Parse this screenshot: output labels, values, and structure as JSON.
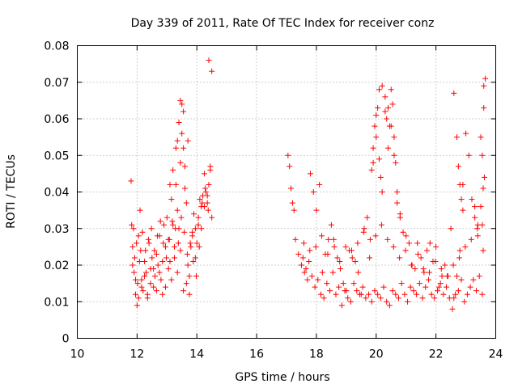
{
  "chart_data": {
    "type": "scatter",
    "title": "Day 339 of 2011, Rate Of TEC Index for receiver conz",
    "xlabel": "GPS time / hours",
    "ylabel": "ROTI / TECUs",
    "xlim": [
      10,
      24
    ],
    "ylim": [
      0,
      0.08
    ],
    "xticks": [
      10,
      12,
      14,
      16,
      18,
      20,
      22,
      24
    ],
    "xtick_labels": [
      "10",
      "12",
      "14",
      "16",
      "18",
      "20",
      "22",
      "24"
    ],
    "yticks": [
      0,
      0.01,
      0.02,
      0.03,
      0.04,
      0.05,
      0.06,
      0.07,
      0.08
    ],
    "ytick_labels": [
      "0",
      "0.01",
      "0.02",
      "0.03",
      "0.04",
      "0.05",
      "0.06",
      "0.07",
      "0.08"
    ],
    "grid": true,
    "marker": "+",
    "color": "#ff0000",
    "series": [
      {
        "name": "ROTI",
        "x": [
          11.8,
          11.82,
          11.85,
          11.9,
          11.92,
          11.95,
          12.0,
          12.02,
          12.05,
          12.1,
          12.12,
          12.15,
          12.2,
          12.25,
          12.3,
          12.35,
          12.4,
          12.45,
          12.5,
          12.55,
          12.6,
          12.65,
          12.7,
          12.75,
          12.8,
          12.85,
          12.9,
          12.95,
          13.0,
          13.05,
          13.1,
          13.15,
          13.2,
          13.25,
          13.3,
          13.35,
          13.4,
          13.45,
          13.5,
          13.55,
          13.6,
          13.65,
          13.7,
          13.75,
          13.8,
          13.85,
          13.9,
          13.95,
          14.0,
          14.05,
          14.1,
          14.15,
          14.2,
          14.25,
          14.3,
          14.35,
          14.4,
          14.45,
          14.5,
          11.85,
          11.95,
          12.05,
          12.15,
          12.25,
          12.35,
          12.45,
          12.55,
          12.65,
          12.75,
          12.85,
          12.95,
          13.05,
          13.15,
          13.25,
          13.35,
          13.45,
          13.55,
          13.65,
          13.75,
          13.85,
          13.95,
          14.05,
          14.15,
          14.25,
          14.35,
          11.88,
          11.98,
          12.08,
          12.18,
          12.28,
          12.38,
          12.48,
          12.58,
          12.68,
          12.78,
          12.88,
          12.98,
          13.08,
          13.18,
          13.28,
          13.38,
          13.48,
          13.58,
          13.68,
          13.78,
          13.88,
          13.98,
          14.08,
          14.18,
          14.28,
          14.38,
          13.1,
          13.2,
          13.3,
          13.35,
          13.4,
          13.45,
          13.5,
          13.55,
          13.6,
          13.7,
          14.4,
          14.5,
          14.45,
          17.05,
          17.1,
          17.15,
          17.2,
          17.25,
          17.3,
          17.4,
          17.5,
          17.6,
          17.7,
          17.8,
          17.9,
          18.0,
          18.1,
          18.2,
          18.3,
          18.4,
          18.5,
          18.6,
          18.7,
          18.8,
          18.9,
          19.0,
          19.1,
          19.2,
          19.3,
          19.4,
          19.5,
          19.6,
          19.7,
          19.8,
          19.9,
          20.0,
          20.1,
          20.2,
          20.3,
          20.4,
          20.5,
          20.6,
          20.7,
          20.8,
          20.9,
          21.0,
          21.1,
          21.2,
          21.3,
          21.4,
          21.5,
          21.6,
          21.7,
          21.8,
          21.9,
          22.0,
          22.1,
          22.2,
          22.3,
          22.4,
          22.5,
          22.6,
          22.7,
          22.8,
          22.9,
          23.0,
          23.1,
          23.2,
          23.3,
          23.4,
          23.5,
          23.6,
          23.65,
          17.55,
          17.65,
          17.75,
          17.85,
          17.95,
          18.05,
          18.15,
          18.25,
          18.35,
          18.45,
          18.55,
          18.65,
          18.75,
          18.85,
          18.95,
          19.05,
          19.15,
          19.25,
          19.35,
          19.45,
          19.55,
          19.65,
          19.75,
          19.85,
          19.95,
          20.05,
          20.15,
          20.25,
          20.35,
          20.45,
          20.55,
          20.65,
          20.75,
          20.85,
          20.95,
          21.05,
          21.15,
          21.25,
          21.35,
          21.45,
          21.55,
          21.65,
          21.75,
          21.85,
          21.95,
          22.05,
          22.15,
          22.25,
          22.35,
          22.45,
          22.55,
          22.65,
          22.75,
          22.85,
          22.95,
          23.05,
          23.15,
          23.25,
          23.35,
          23.45,
          23.55,
          17.58,
          17.78,
          17.98,
          18.18,
          18.38,
          18.58,
          18.78,
          18.98,
          19.18,
          19.38,
          19.58,
          19.78,
          19.98,
          20.18,
          20.38,
          20.58,
          20.78,
          20.98,
          21.18,
          21.38,
          21.58,
          21.78,
          21.98,
          22.18,
          22.38,
          22.58,
          22.78,
          22.98,
          23.18,
          23.38,
          23.58,
          19.85,
          19.9,
          19.95,
          20.0,
          20.05,
          20.1,
          20.15,
          20.2,
          20.3,
          20.35,
          20.4,
          20.45,
          20.5,
          20.55,
          20.6,
          20.65,
          20.7,
          20.8,
          22.6,
          22.7,
          22.75,
          22.8,
          22.85,
          22.9,
          23.3,
          23.4,
          23.5,
          23.55,
          23.6,
          23.62,
          23.58,
          23.55
        ],
        "y": [
          0.043,
          0.031,
          0.025,
          0.018,
          0.022,
          0.012,
          0.009,
          0.015,
          0.028,
          0.035,
          0.024,
          0.016,
          0.013,
          0.021,
          0.018,
          0.011,
          0.026,
          0.019,
          0.022,
          0.014,
          0.017,
          0.023,
          0.02,
          0.028,
          0.016,
          0.012,
          0.031,
          0.025,
          0.033,
          0.027,
          0.021,
          0.038,
          0.031,
          0.025,
          0.042,
          0.035,
          0.03,
          0.048,
          0.056,
          0.062,
          0.041,
          0.037,
          0.02,
          0.017,
          0.025,
          0.029,
          0.034,
          0.022,
          0.026,
          0.031,
          0.038,
          0.036,
          0.039,
          0.045,
          0.04,
          0.037,
          0.042,
          0.046,
          0.033,
          0.02,
          0.016,
          0.011,
          0.014,
          0.017,
          0.012,
          0.015,
          0.019,
          0.013,
          0.018,
          0.021,
          0.014,
          0.019,
          0.016,
          0.022,
          0.018,
          0.024,
          0.013,
          0.015,
          0.012,
          0.028,
          0.03,
          0.033,
          0.03,
          0.036,
          0.039,
          0.03,
          0.026,
          0.021,
          0.029,
          0.024,
          0.027,
          0.03,
          0.024,
          0.028,
          0.032,
          0.026,
          0.022,
          0.027,
          0.032,
          0.03,
          0.026,
          0.033,
          0.029,
          0.023,
          0.026,
          0.021,
          0.017,
          0.025,
          0.037,
          0.041,
          0.035,
          0.042,
          0.046,
          0.052,
          0.054,
          0.059,
          0.065,
          0.064,
          0.052,
          0.047,
          0.054,
          0.076,
          0.073,
          0.047,
          0.05,
          0.047,
          0.041,
          0.037,
          0.035,
          0.027,
          0.023,
          0.02,
          0.018,
          0.016,
          0.045,
          0.04,
          0.035,
          0.042,
          0.018,
          0.023,
          0.027,
          0.031,
          0.025,
          0.022,
          0.019,
          0.015,
          0.013,
          0.024,
          0.022,
          0.021,
          0.018,
          0.012,
          0.03,
          0.033,
          0.027,
          0.048,
          0.055,
          0.068,
          0.069,
          0.062,
          0.052,
          0.058,
          0.05,
          0.04,
          0.034,
          0.029,
          0.028,
          0.026,
          0.02,
          0.019,
          0.023,
          0.022,
          0.018,
          0.024,
          0.026,
          0.021,
          0.025,
          0.014,
          0.017,
          0.02,
          0.017,
          0.03,
          0.011,
          0.017,
          0.024,
          0.042,
          0.056,
          0.05,
          0.038,
          0.033,
          0.028,
          0.036,
          0.069,
          0.071,
          0.022,
          0.019,
          0.021,
          0.017,
          0.014,
          0.016,
          0.012,
          0.011,
          0.015,
          0.013,
          0.018,
          0.012,
          0.014,
          0.009,
          0.013,
          0.011,
          0.01,
          0.015,
          0.013,
          0.012,
          0.014,
          0.011,
          0.012,
          0.01,
          0.013,
          0.012,
          0.011,
          0.014,
          0.01,
          0.009,
          0.013,
          0.012,
          0.011,
          0.015,
          0.012,
          0.01,
          0.014,
          0.013,
          0.012,
          0.015,
          0.011,
          0.014,
          0.016,
          0.012,
          0.011,
          0.013,
          0.015,
          0.012,
          0.014,
          0.011,
          0.008,
          0.012,
          0.013,
          0.016,
          0.01,
          0.012,
          0.014,
          0.016,
          0.013,
          0.017,
          0.012,
          0.026,
          0.024,
          0.025,
          0.028,
          0.023,
          0.027,
          0.021,
          0.025,
          0.024,
          0.026,
          0.029,
          0.022,
          0.028,
          0.031,
          0.027,
          0.025,
          0.022,
          0.024,
          0.02,
          0.026,
          0.019,
          0.018,
          0.021,
          0.019,
          0.017,
          0.02,
          0.022,
          0.025,
          0.027,
          0.03,
          0.024,
          0.046,
          0.052,
          0.058,
          0.061,
          0.063,
          0.049,
          0.044,
          0.04,
          0.066,
          0.06,
          0.063,
          0.058,
          0.068,
          0.064,
          0.055,
          0.048,
          0.037,
          0.033,
          0.067,
          0.055,
          0.047,
          0.042,
          0.038,
          0.035,
          0.036,
          0.031,
          0.055,
          0.05,
          0.063,
          0.044,
          0.041,
          0.031
        ]
      }
    ]
  }
}
